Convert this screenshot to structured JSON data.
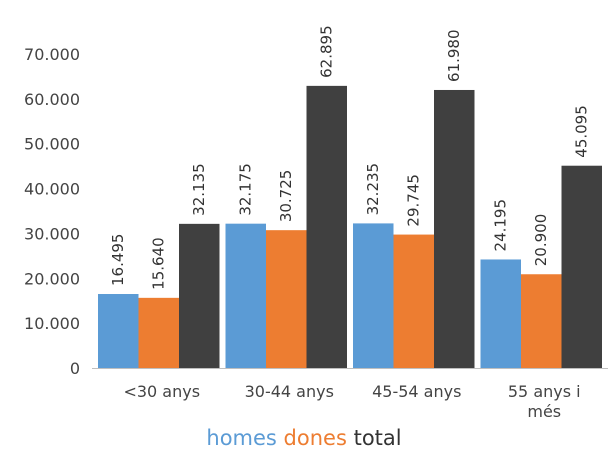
{
  "chart_data": {
    "type": "bar",
    "title": "",
    "xlabel": "",
    "ylabel": "",
    "ylim": [
      0,
      70000
    ],
    "ytick_values": [
      0,
      10000,
      20000,
      30000,
      40000,
      50000,
      60000,
      70000
    ],
    "ytick_labels": [
      "0",
      "10.000",
      "20.000",
      "30.000",
      "40.000",
      "50.000",
      "60.000",
      "70.000"
    ],
    "grid": false,
    "legend_position": "bottom",
    "categories": [
      [
        "<30 anys"
      ],
      [
        "30-44 anys"
      ],
      [
        "45-54 anys"
      ],
      [
        "55 anys i",
        "més"
      ]
    ],
    "series": [
      {
        "name": "homes",
        "color": "#5b9bd5",
        "values": [
          16495,
          32175,
          32235,
          24195
        ],
        "labels": [
          "16.495",
          "32.175",
          "32.235",
          "24.195"
        ]
      },
      {
        "name": "dones",
        "color": "#ed7d31",
        "values": [
          15640,
          30725,
          29745,
          20900
        ],
        "labels": [
          "15.640",
          "30.725",
          "29.745",
          "20.900"
        ]
      },
      {
        "name": "total",
        "color": "#404040",
        "values": [
          32135,
          62895,
          61980,
          45095
        ],
        "labels": [
          "32.135",
          "62.895",
          "61.980",
          "45.095"
        ]
      }
    ]
  }
}
